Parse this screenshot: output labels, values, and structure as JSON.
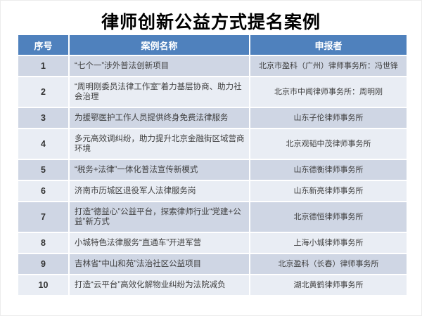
{
  "slide": {
    "title": "律师创新公益方式提名案例"
  },
  "table": {
    "columns": [
      "序号",
      "案例名称",
      "申报者"
    ],
    "rows": [
      {
        "no": "1",
        "case_name": "“七个一”涉外普法创新项目",
        "applicant": "北京市盈科（广州）律师事务所：冯世锋"
      },
      {
        "no": "2",
        "case_name": "“周明刚委员法律工作室”着力基层协商、助力社会治理",
        "applicant": "北京市中闻律师事务所：周明刚"
      },
      {
        "no": "3",
        "case_name": "为援鄂医护工作人员提供终身免费法律服务",
        "applicant": "山东子伦律师事务所"
      },
      {
        "no": "4",
        "case_name": "多元高效调纠纷，助力提升北京金融街区域营商环境",
        "applicant": "北京观韬中茂律师事务所"
      },
      {
        "no": "5",
        "case_name": "“税务+法律”一体化普法宣传新模式",
        "applicant": "山东德衡律师事务所"
      },
      {
        "no": "6",
        "case_name": "济南市历城区退役军人法律服务岗",
        "applicant": "山东新亮律师事务所"
      },
      {
        "no": "7",
        "case_name": "打造“德益心”公益平台，探索律师行业“党建+公益”新方式",
        "applicant": "北京德恒律师事务所"
      },
      {
        "no": "8",
        "case_name": "小城特色法律服务“直通车”开进军营",
        "applicant": "上海小城律师事务所"
      },
      {
        "no": "9",
        "case_name": "吉林省“中山和苑”法治社区公益项目",
        "applicant": "北京盈科（长春）律师事务所"
      },
      {
        "no": "10",
        "case_name": "打造“云平台”高效化解物业纠纷为法院减负",
        "applicant": "湖北黄鹤律师事务所"
      }
    ],
    "colors": {
      "header_bg": "#4f81bd",
      "header_text": "#ffffff",
      "row_band_dark": "#cfd6e4",
      "row_band_light": "#e9edf4",
      "body_text": "#3f3f3f",
      "title_text": "#000000"
    }
  }
}
